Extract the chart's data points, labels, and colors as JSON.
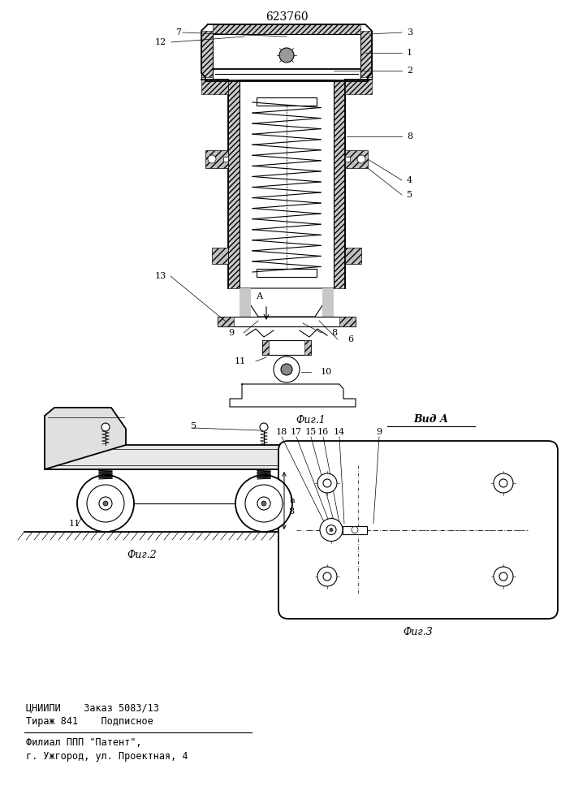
{
  "patent_number": "623760",
  "bg_color": "#ffffff",
  "line_color": "#000000",
  "fig_width": 7.07,
  "fig_height": 10.0,
  "footer_line1": "ЦНИИПИ    Заказ 5083/13",
  "footer_line2": "Тираж 841    Подписное",
  "footer_line3": "Филиал ППП \"Патент\",",
  "footer_line4": "г. Ужгород, ул. Проектная, 4",
  "fig1_caption": "Фиг.1",
  "fig2_caption": "Фиг.2",
  "fig3_caption": "Фиг.3",
  "vid_a_label": "Вид А"
}
